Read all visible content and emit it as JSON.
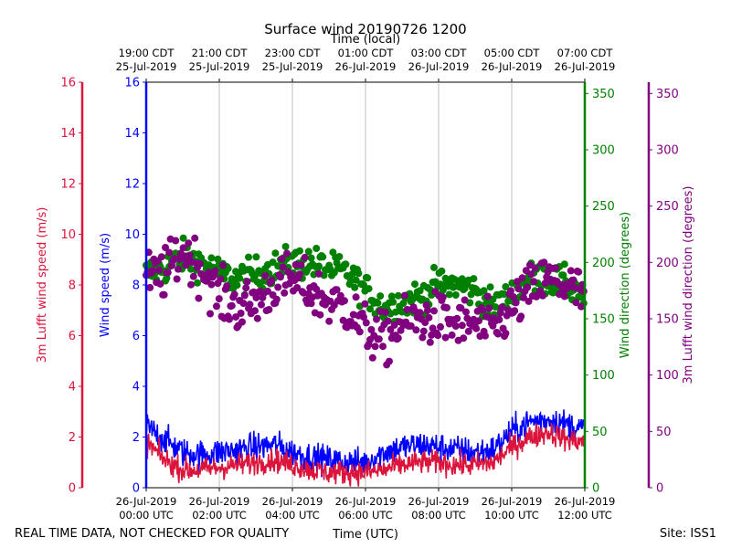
{
  "chart_data": {
    "type": "line",
    "title": "Surface wind 20190726 1200",
    "x_top_label": "Time (local)",
    "x_bottom_label": "Time (UTC)",
    "footer_left": "REAL TIME DATA, NOT CHECKED FOR QUALITY",
    "footer_right": "Site: ISS1",
    "x_range_hours_utc": [
      0,
      12
    ],
    "bottom_ticks": [
      {
        "hour": 0,
        "line1": "26-Jul-2019",
        "line2": "00:00 UTC"
      },
      {
        "hour": 2,
        "line1": "26-Jul-2019",
        "line2": "02:00 UTC"
      },
      {
        "hour": 4,
        "line1": "26-Jul-2019",
        "line2": "04:00 UTC"
      },
      {
        "hour": 6,
        "line1": "26-Jul-2019",
        "line2": "06:00 UTC"
      },
      {
        "hour": 8,
        "line1": "26-Jul-2019",
        "line2": "08:00 UTC"
      },
      {
        "hour": 10,
        "line1": "26-Jul-2019",
        "line2": "10:00 UTC"
      },
      {
        "hour": 12,
        "line1": "26-Jul-2019",
        "line2": "12:00 UTC"
      }
    ],
    "top_ticks": [
      {
        "hour": 0,
        "line1": "19:00 CDT",
        "line2": "25-Jul-2019"
      },
      {
        "hour": 2,
        "line1": "21:00 CDT",
        "line2": "25-Jul-2019"
      },
      {
        "hour": 4,
        "line1": "23:00 CDT",
        "line2": "25-Jul-2019"
      },
      {
        "hour": 6,
        "line1": "01:00 CDT",
        "line2": "26-Jul-2019"
      },
      {
        "hour": 8,
        "line1": "03:00 CDT",
        "line2": "26-Jul-2019"
      },
      {
        "hour": 10,
        "line1": "05:00 CDT",
        "line2": "26-Jul-2019"
      },
      {
        "hour": 12,
        "line1": "07:00 CDT",
        "line2": "26-Jul-2019"
      }
    ],
    "axes": {
      "lufft_speed": {
        "label": "3m Lufft wind speed (m/s)",
        "range": [
          0,
          16
        ],
        "ticks": [
          0,
          2,
          4,
          6,
          8,
          10,
          12,
          14,
          16
        ],
        "color": "#dc143c"
      },
      "wind_speed": {
        "label": "Wind speed (m/s)",
        "range": [
          0,
          16
        ],
        "ticks": [
          0,
          2,
          4,
          6,
          8,
          10,
          12,
          14,
          16
        ],
        "color": "#0000ff"
      },
      "wind_dir": {
        "label": "Wind direction (degrees)",
        "range": [
          0,
          360
        ],
        "ticks": [
          0,
          50,
          100,
          150,
          200,
          250,
          300,
          350
        ],
        "color": "#008000"
      },
      "lufft_dir": {
        "label": "3m Lufft wind direction (degrees)",
        "range": [
          0,
          360
        ],
        "ticks": [
          0,
          50,
          100,
          150,
          200,
          250,
          300,
          350
        ],
        "color": "#800080"
      }
    },
    "series": [
      {
        "name": "Wind speed",
        "axis": "wind_speed",
        "kind": "line",
        "color": "#0000ff",
        "x": [
          0,
          0.5,
          1,
          1.5,
          2,
          2.5,
          3,
          3.5,
          4,
          4.5,
          5,
          5.5,
          6,
          6.5,
          7,
          7.5,
          8,
          8.5,
          9,
          9.5,
          10,
          10.5,
          11,
          11.5,
          12
        ],
        "y": [
          2.4,
          1.9,
          1.4,
          1.3,
          1.4,
          1.5,
          1.6,
          1.7,
          1.4,
          1.2,
          1.1,
          1.0,
          1.0,
          1.4,
          1.6,
          1.7,
          1.6,
          1.5,
          1.4,
          1.5,
          2.2,
          2.6,
          2.7,
          2.5,
          2.3
        ]
      },
      {
        "name": "3m Lufft wind speed",
        "axis": "lufft_speed",
        "kind": "line",
        "color": "#dc143c",
        "x": [
          0,
          0.5,
          1,
          1.5,
          2,
          2.5,
          3,
          3.5,
          4,
          4.5,
          5,
          5.5,
          6,
          6.5,
          7,
          7.5,
          8,
          8.5,
          9,
          9.5,
          10,
          10.5,
          11,
          11.5,
          12
        ],
        "y": [
          1.8,
          1.1,
          0.7,
          0.7,
          0.8,
          0.9,
          1.0,
          1.1,
          0.9,
          0.7,
          0.6,
          0.6,
          0.6,
          0.7,
          0.9,
          1.0,
          1.0,
          0.9,
          0.9,
          1.0,
          1.6,
          2.0,
          2.2,
          1.9,
          1.8
        ]
      },
      {
        "name": "Wind direction",
        "axis": "wind_dir",
        "kind": "scatter",
        "color": "#008000",
        "x": [
          0,
          0.5,
          1,
          1.5,
          2,
          2.5,
          3,
          3.5,
          4,
          4.5,
          5,
          5.5,
          6,
          6.5,
          7,
          7.5,
          8,
          8.5,
          9,
          9.5,
          10,
          10.5,
          11,
          11.5,
          12
        ],
        "y": [
          190,
          195,
          205,
          200,
          190,
          185,
          190,
          195,
          200,
          200,
          195,
          190,
          175,
          160,
          165,
          170,
          180,
          180,
          175,
          160,
          170,
          185,
          185,
          180,
          170
        ]
      },
      {
        "name": "3m Lufft wind direction",
        "axis": "lufft_dir",
        "kind": "scatter",
        "color": "#800080",
        "x": [
          0,
          0.5,
          1,
          1.5,
          2,
          2.5,
          3,
          3.5,
          4,
          4.5,
          5,
          5.5,
          6,
          6.5,
          7,
          7.5,
          8,
          8.5,
          9,
          9.5,
          10,
          10.5,
          11,
          11.5,
          12
        ],
        "y": [
          185,
          190,
          210,
          195,
          170,
          160,
          165,
          180,
          185,
          175,
          165,
          160,
          140,
          130,
          145,
          150,
          150,
          145,
          145,
          140,
          160,
          175,
          185,
          180,
          170
        ]
      }
    ]
  }
}
